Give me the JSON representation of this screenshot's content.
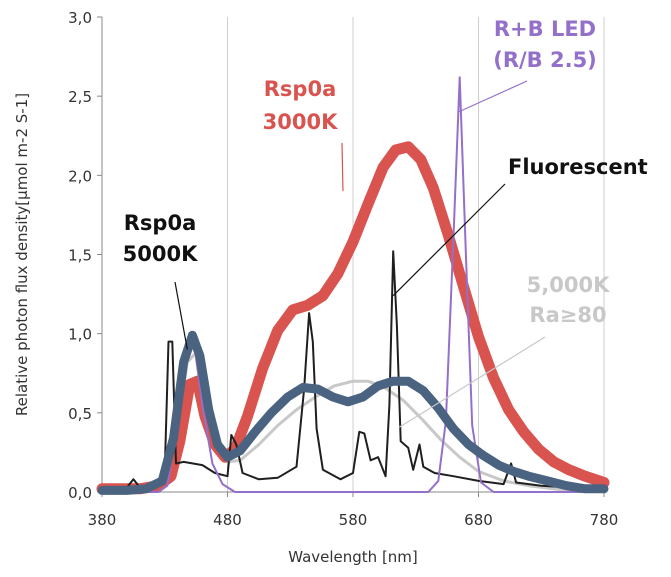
{
  "chart_data": {
    "type": "line",
    "title": "",
    "xlabel": "Wavelength [nm]",
    "ylabel": "Relative photon flux density[µmol m-2 S-1]",
    "xlim": [
      380,
      780
    ],
    "ylim": [
      0,
      3.0
    ],
    "x_ticks": [
      380,
      480,
      580,
      680,
      780
    ],
    "x_tick_labels": [
      "380",
      "480",
      "580",
      "680",
      "780"
    ],
    "y_ticks": [
      0,
      0.5,
      1.0,
      1.5,
      2.0,
      2.5,
      3.0
    ],
    "y_tick_labels": [
      "0,0",
      "0,5",
      "1,0",
      "1,5",
      "2,0",
      "2,5",
      "3,0"
    ],
    "grid": "vertical",
    "legend": "none",
    "series": [
      {
        "name": "5,000K Ra≥80",
        "color": "#c8c8c8",
        "width": 3,
        "points": [
          [
            380,
            0.01
          ],
          [
            410,
            0.01
          ],
          [
            425,
            0.04
          ],
          [
            437,
            0.22
          ],
          [
            448,
            0.82
          ],
          [
            455,
            0.88
          ],
          [
            462,
            0.58
          ],
          [
            470,
            0.3
          ],
          [
            480,
            0.19
          ],
          [
            490,
            0.2
          ],
          [
            505,
            0.3
          ],
          [
            520,
            0.42
          ],
          [
            535,
            0.52
          ],
          [
            550,
            0.6
          ],
          [
            565,
            0.67
          ],
          [
            580,
            0.7
          ],
          [
            592,
            0.7
          ],
          [
            605,
            0.66
          ],
          [
            620,
            0.58
          ],
          [
            635,
            0.46
          ],
          [
            650,
            0.33
          ],
          [
            665,
            0.22
          ],
          [
            680,
            0.13
          ],
          [
            700,
            0.07
          ],
          [
            720,
            0.04
          ],
          [
            750,
            0.01
          ],
          [
            780,
            0.01
          ]
        ]
      },
      {
        "name": "Rsp0a 3000K",
        "color": "#d9534f",
        "width": 11,
        "points": [
          [
            380,
            0.02
          ],
          [
            410,
            0.02
          ],
          [
            425,
            0.04
          ],
          [
            435,
            0.1
          ],
          [
            442,
            0.32
          ],
          [
            450,
            0.68
          ],
          [
            456,
            0.7
          ],
          [
            462,
            0.48
          ],
          [
            470,
            0.3
          ],
          [
            478,
            0.22
          ],
          [
            486,
            0.27
          ],
          [
            496,
            0.48
          ],
          [
            508,
            0.78
          ],
          [
            520,
            1.02
          ],
          [
            532,
            1.15
          ],
          [
            544,
            1.18
          ],
          [
            556,
            1.24
          ],
          [
            568,
            1.38
          ],
          [
            580,
            1.58
          ],
          [
            592,
            1.82
          ],
          [
            604,
            2.05
          ],
          [
            614,
            2.16
          ],
          [
            624,
            2.18
          ],
          [
            634,
            2.1
          ],
          [
            644,
            1.92
          ],
          [
            656,
            1.62
          ],
          [
            668,
            1.3
          ],
          [
            680,
            0.98
          ],
          [
            692,
            0.72
          ],
          [
            704,
            0.52
          ],
          [
            716,
            0.38
          ],
          [
            728,
            0.27
          ],
          [
            740,
            0.19
          ],
          [
            752,
            0.14
          ],
          [
            765,
            0.1
          ],
          [
            780,
            0.06
          ]
        ]
      },
      {
        "name": "Fluorescent",
        "color": "#1f1f1f",
        "width": 2,
        "points": [
          [
            380,
            0.03
          ],
          [
            400,
            0.03
          ],
          [
            405,
            0.08
          ],
          [
            410,
            0.03
          ],
          [
            425,
            0.04
          ],
          [
            430,
            0.14
          ],
          [
            433,
            0.95
          ],
          [
            436,
            0.95
          ],
          [
            439,
            0.18
          ],
          [
            445,
            0.19
          ],
          [
            460,
            0.17
          ],
          [
            470,
            0.12
          ],
          [
            480,
            0.1
          ],
          [
            483,
            0.36
          ],
          [
            487,
            0.3
          ],
          [
            492,
            0.12
          ],
          [
            505,
            0.08
          ],
          [
            520,
            0.09
          ],
          [
            535,
            0.16
          ],
          [
            541,
            0.65
          ],
          [
            545,
            1.13
          ],
          [
            548,
            0.95
          ],
          [
            551,
            0.4
          ],
          [
            556,
            0.14
          ],
          [
            570,
            0.08
          ],
          [
            580,
            0.12
          ],
          [
            585,
            0.38
          ],
          [
            589,
            0.37
          ],
          [
            594,
            0.2
          ],
          [
            600,
            0.22
          ],
          [
            606,
            0.1
          ],
          [
            609,
            0.55
          ],
          [
            612,
            1.52
          ],
          [
            615,
            1.05
          ],
          [
            618,
            0.32
          ],
          [
            624,
            0.28
          ],
          [
            628,
            0.14
          ],
          [
            633,
            0.3
          ],
          [
            636,
            0.16
          ],
          [
            645,
            0.12
          ],
          [
            660,
            0.1
          ],
          [
            680,
            0.07
          ],
          [
            700,
            0.05
          ],
          [
            706,
            0.18
          ],
          [
            710,
            0.06
          ],
          [
            730,
            0.04
          ],
          [
            750,
            0.03
          ],
          [
            780,
            0.03
          ]
        ]
      },
      {
        "name": "R+B LED (R/B 2.5)",
        "color": "#9370c9",
        "width": 2,
        "points": [
          [
            380,
            0
          ],
          [
            425,
            0
          ],
          [
            432,
            0.04
          ],
          [
            440,
            0.42
          ],
          [
            447,
            0.92
          ],
          [
            453,
            0.96
          ],
          [
            460,
            0.55
          ],
          [
            468,
            0.18
          ],
          [
            476,
            0.05
          ],
          [
            486,
            0
          ],
          [
            640,
            0
          ],
          [
            648,
            0.07
          ],
          [
            654,
            0.45
          ],
          [
            660,
            1.6
          ],
          [
            665,
            2.62
          ],
          [
            670,
            1.5
          ],
          [
            675,
            0.42
          ],
          [
            682,
            0.06
          ],
          [
            692,
            0
          ],
          [
            780,
            0
          ]
        ]
      },
      {
        "name": "Rsp0a 5000K",
        "color": "#4a6381",
        "width": 9,
        "points": [
          [
            380,
            0.01
          ],
          [
            400,
            0.01
          ],
          [
            415,
            0.02
          ],
          [
            428,
            0.07
          ],
          [
            437,
            0.34
          ],
          [
            445,
            0.82
          ],
          [
            452,
            0.99
          ],
          [
            458,
            0.86
          ],
          [
            465,
            0.52
          ],
          [
            472,
            0.3
          ],
          [
            480,
            0.22
          ],
          [
            490,
            0.26
          ],
          [
            502,
            0.38
          ],
          [
            515,
            0.5
          ],
          [
            528,
            0.6
          ],
          [
            540,
            0.66
          ],
          [
            552,
            0.65
          ],
          [
            564,
            0.6
          ],
          [
            576,
            0.57
          ],
          [
            588,
            0.6
          ],
          [
            600,
            0.67
          ],
          [
            612,
            0.7
          ],
          [
            624,
            0.7
          ],
          [
            636,
            0.64
          ],
          [
            648,
            0.53
          ],
          [
            660,
            0.4
          ],
          [
            672,
            0.3
          ],
          [
            684,
            0.23
          ],
          [
            696,
            0.17
          ],
          [
            708,
            0.13
          ],
          [
            720,
            0.1
          ],
          [
            735,
            0.07
          ],
          [
            750,
            0.04
          ],
          [
            765,
            0.02
          ],
          [
            780,
            0.02
          ]
        ]
      }
    ],
    "annotations": [
      {
        "id": "r-b-led",
        "lines": [
          "R+B LED",
          "(R/B 2.5)"
        ],
        "color": "#9370c9",
        "leader_to": [
          664,
          2.4
        ]
      },
      {
        "id": "rsp0a-3000k",
        "lines": [
          "Rsp0a",
          "3000K"
        ],
        "color": "#d9534f",
        "leader_to": [
          572,
          1.9
        ]
      },
      {
        "id": "fluorescent",
        "lines": [
          "Fluorescent"
        ],
        "color": "#111111",
        "leader_to": [
          612,
          1.24
        ]
      },
      {
        "id": "rsp0a-5000k",
        "lines": [
          "Rsp0a",
          "5000K"
        ],
        "color": "#111111",
        "leader_to": [
          448,
          0.9
        ]
      },
      {
        "id": "5000k-ra80",
        "lines": [
          "5,000K",
          "Ra≥80"
        ],
        "color": "#c8c8c8",
        "leader_to": [
          617,
          0.41
        ]
      }
    ]
  }
}
